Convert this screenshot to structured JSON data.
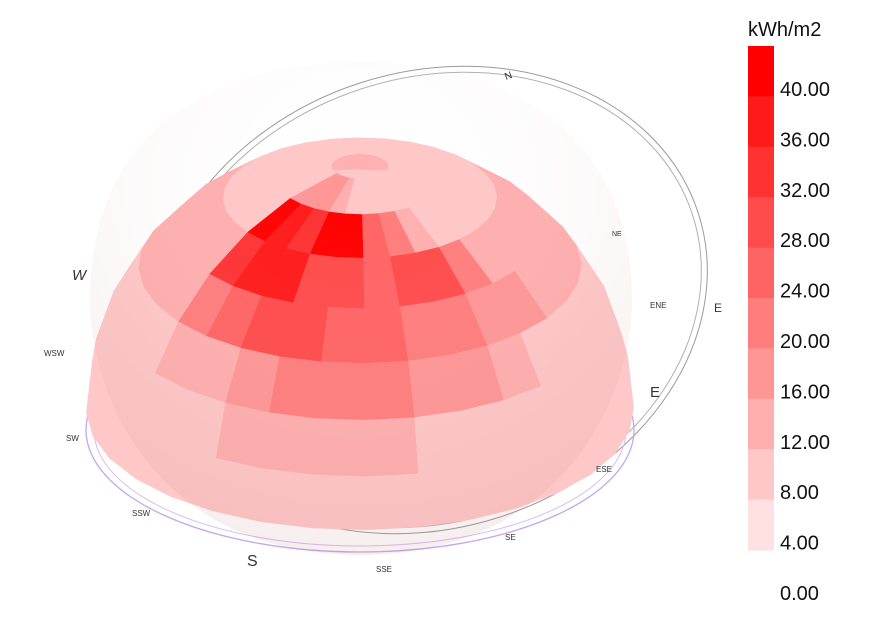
{
  "chart_data": {
    "type": "heatmap",
    "title": "",
    "legend": {
      "unit": "kWh/m2",
      "position": "right",
      "ticks": [
        "40.00",
        "36.00",
        "32.00",
        "28.00",
        "24.00",
        "20.00",
        "16.00",
        "12.00",
        "8.00",
        "4.00",
        "0.00"
      ],
      "colors": [
        "#ff0000",
        "#ff1a1a",
        "#ff3232",
        "#ff4b4b",
        "#ff6464",
        "#ff7d7d",
        "#ff9696",
        "#ffafaf",
        "#ffc8c8",
        "#ffe1e1"
      ]
    },
    "compass": {
      "major": [
        "N",
        "E",
        "S",
        "W"
      ],
      "minor": [
        "NE",
        "ENE",
        "ESE",
        "SE",
        "SSE",
        "SSW",
        "SW",
        "WSW"
      ]
    },
    "rings": [
      {
        "name": "horizon",
        "values": [
          4,
          4,
          4,
          4,
          4,
          4,
          4,
          4,
          4,
          4,
          4,
          4,
          4,
          4,
          4,
          4,
          4,
          4,
          4,
          4,
          4,
          4,
          4,
          4,
          4,
          4,
          4,
          4,
          4,
          4,
          4,
          4
        ]
      },
      {
        "name": "alt-12",
        "values": [
          4,
          6,
          8,
          8,
          8,
          8,
          6,
          4,
          4,
          4,
          4,
          4,
          4,
          4,
          4,
          4,
          4,
          4,
          4,
          4,
          4,
          4,
          4,
          4,
          4,
          4,
          4,
          4,
          4,
          4,
          4,
          4
        ]
      },
      {
        "name": "alt-24",
        "values": [
          8,
          10,
          14,
          16,
          18,
          16,
          14,
          12,
          10,
          6,
          6,
          6,
          6,
          6,
          6,
          6,
          6,
          6,
          6,
          6,
          6,
          6,
          6,
          6,
          6,
          6,
          6,
          6,
          6,
          6,
          6,
          6
        ]
      },
      {
        "name": "alt-36",
        "values": [
          18,
          22,
          26,
          26,
          22,
          20,
          18,
          16,
          14,
          12,
          10,
          10,
          10,
          10,
          10,
          10,
          10,
          10,
          10,
          10,
          10,
          10,
          10,
          10,
          10,
          10,
          10,
          10,
          10,
          10,
          10,
          10
        ]
      },
      {
        "name": "alt-48",
        "values": [
          30,
          34,
          32,
          26,
          24,
          22,
          24,
          26,
          16,
          10,
          10,
          10,
          10,
          10,
          10,
          10,
          10,
          10,
          10,
          10,
          10,
          10,
          10,
          10,
          10,
          10,
          10,
          10,
          10,
          10,
          10,
          10
        ]
      },
      {
        "name": "alt-60",
        "values": [
          36,
          32,
          30,
          40,
          40,
          22,
          16,
          8,
          6,
          6,
          6,
          6,
          6,
          6,
          6,
          6,
          6,
          6,
          6,
          6,
          6,
          6,
          6,
          6,
          6,
          6,
          6,
          6,
          6,
          6,
          6,
          6
        ]
      },
      {
        "name": "alt-72",
        "values": [
          14,
          14,
          12,
          8,
          6,
          4,
          4,
          4,
          4,
          4,
          4,
          4,
          4,
          4,
          4,
          4,
          4,
          4,
          4,
          4,
          4,
          4,
          4,
          4,
          4,
          4,
          4,
          4,
          4,
          4,
          4,
          4
        ]
      },
      {
        "name": "zenith",
        "values": [
          4
        ]
      }
    ],
    "grid": false
  }
}
